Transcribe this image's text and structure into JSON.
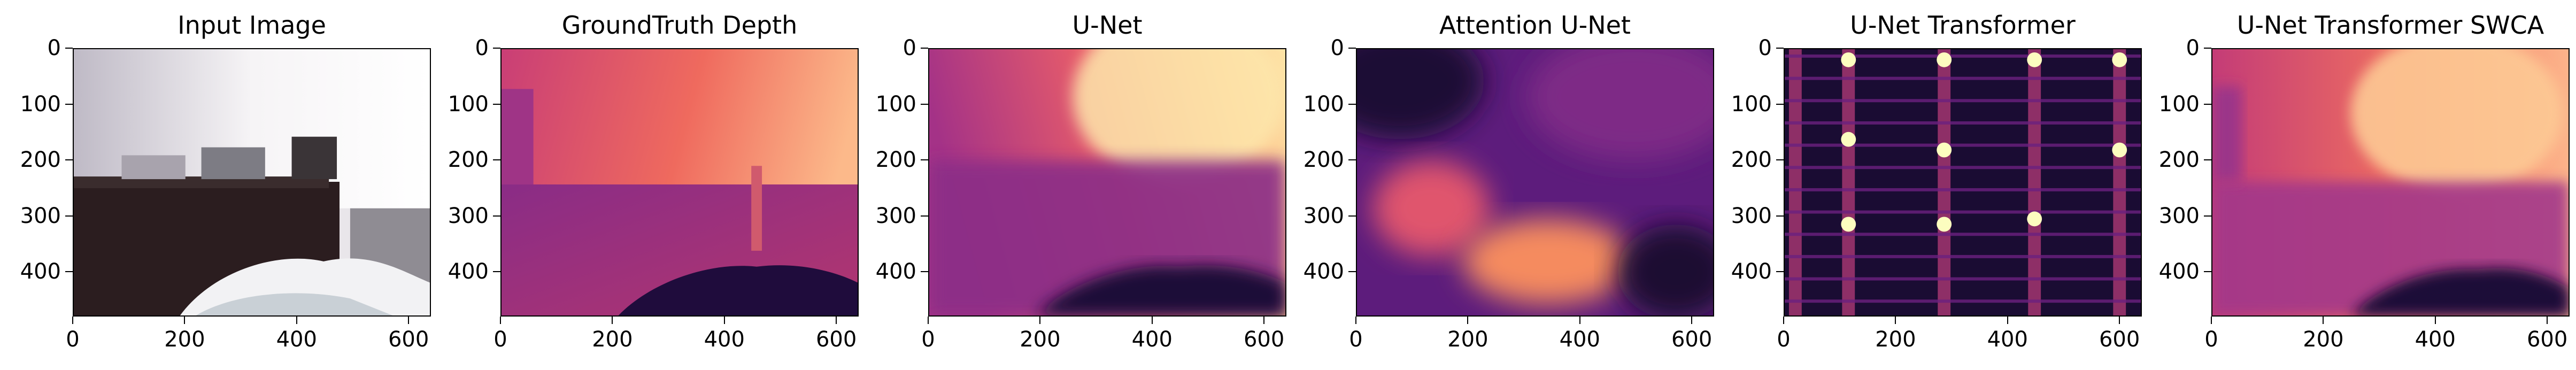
{
  "figure": {
    "panels": [
      {
        "title": "Input Image",
        "kind": "rgb"
      },
      {
        "title": "GroundTruth Depth",
        "kind": "gt"
      },
      {
        "title": "U-Net",
        "kind": "unet"
      },
      {
        "title": "Attention U-Net",
        "kind": "attn"
      },
      {
        "title": "U-Net Transformer",
        "kind": "trans"
      },
      {
        "title": "U-Net Transformer SWCA",
        "kind": "swca"
      }
    ],
    "x_ticks": [
      "0",
      "200",
      "400",
      "600"
    ],
    "x_tick_values": [
      0,
      200,
      400,
      600
    ],
    "y_ticks": [
      "0",
      "100",
      "200",
      "300",
      "400"
    ],
    "y_tick_values": [
      0,
      100,
      200,
      300,
      400
    ],
    "x_range": [
      0,
      640
    ],
    "y_range": [
      0,
      480
    ],
    "colormap": "magma"
  }
}
